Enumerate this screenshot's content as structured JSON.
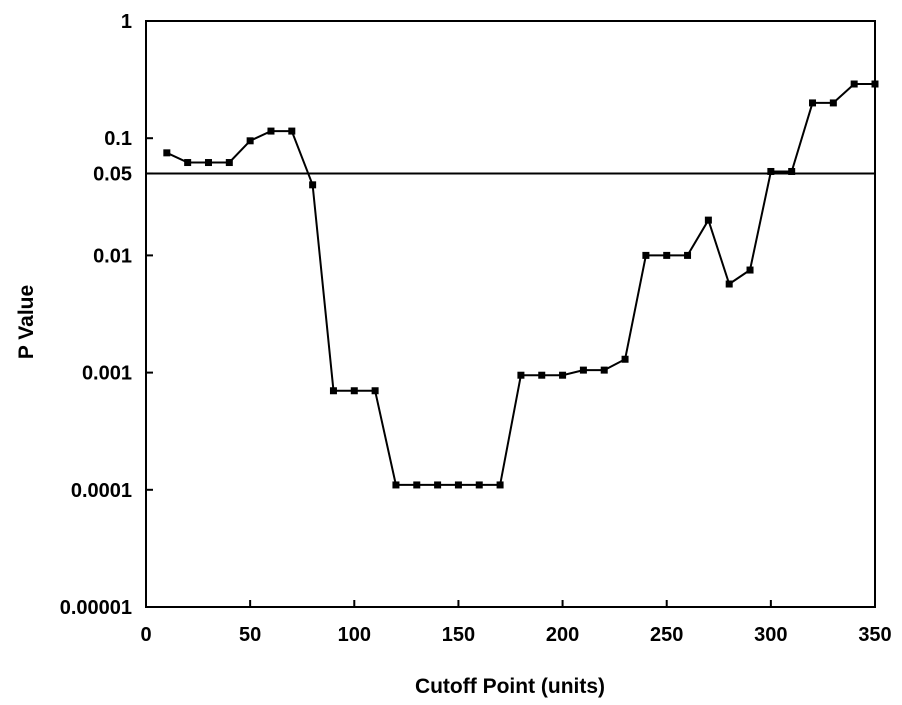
{
  "chart_data": {
    "type": "line",
    "title": "",
    "xlabel": "Cutoff Point (units)",
    "ylabel": "P  Value",
    "x_scale": "linear",
    "y_scale": "log",
    "xlim": [
      0,
      350
    ],
    "ylim": [
      1e-05,
      1
    ],
    "x_ticks": [
      0,
      50,
      100,
      150,
      200,
      250,
      300,
      350
    ],
    "x_tick_labels": [
      "0",
      "50",
      "100",
      "150",
      "200",
      "250",
      "300",
      "350"
    ],
    "y_ticks": [
      1e-05,
      0.0001,
      0.001,
      0.01,
      0.05,
      0.1,
      1
    ],
    "y_tick_labels": [
      "0.00001",
      "0.0001",
      "0.001",
      "0.01",
      "0.05",
      "0.1",
      "1"
    ],
    "grid": false,
    "reference_line": {
      "y": 0.05
    },
    "line_color": "#000000",
    "series": [
      {
        "x": [
          10,
          20,
          30,
          40,
          50,
          60,
          70,
          80,
          90,
          100,
          110,
          120,
          130,
          140,
          150,
          160,
          170,
          180,
          190,
          200,
          210,
          220,
          230,
          240,
          250,
          260,
          270,
          280,
          290,
          300,
          310,
          320,
          330,
          340,
          350
        ],
        "y": [
          0.075,
          0.062,
          0.062,
          0.062,
          0.095,
          0.115,
          0.115,
          0.04,
          0.0007,
          0.0007,
          0.0007,
          0.00011,
          0.00011,
          0.00011,
          0.00011,
          0.00011,
          0.00011,
          0.00095,
          0.00095,
          0.00095,
          0.00105,
          0.00105,
          0.0013,
          0.01,
          0.01,
          0.01,
          0.02,
          0.0057,
          0.0075,
          0.052,
          0.052,
          0.2,
          0.2,
          0.29,
          0.29
        ]
      }
    ]
  }
}
